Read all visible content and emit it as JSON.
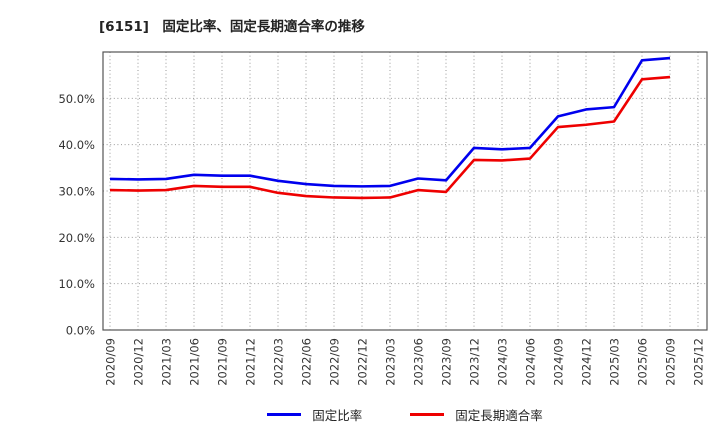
{
  "title": "[6151]　固定比率、固定長期適合率の推移",
  "chart_data": {
    "type": "line",
    "title": "[6151]　固定比率、固定長期適合率の推移",
    "categories": [
      "2020/09",
      "2020/12",
      "2021/03",
      "2021/06",
      "2021/09",
      "2021/12",
      "2022/03",
      "2022/06",
      "2022/09",
      "2022/12",
      "2023/03",
      "2023/06",
      "2023/09",
      "2023/12",
      "2024/03",
      "2024/06",
      "2024/09",
      "2024/12",
      "2025/03",
      "2025/06",
      "2025/09",
      "2025/12"
    ],
    "series": [
      {
        "name": "固定比率",
        "color": "#0000ee",
        "values": [
          32.6,
          32.5,
          32.6,
          33.5,
          33.3,
          33.3,
          32.2,
          31.5,
          31.1,
          31.0,
          31.1,
          32.7,
          32.3,
          39.3,
          39.0,
          39.3,
          46.1,
          47.6,
          48.1,
          58.2,
          58.7,
          null
        ]
      },
      {
        "name": "固定長期適合率",
        "color": "#ee0000",
        "values": [
          30.2,
          30.1,
          30.2,
          31.1,
          30.9,
          30.9,
          29.6,
          28.9,
          28.6,
          28.5,
          28.6,
          30.2,
          29.8,
          36.7,
          36.6,
          37.0,
          43.8,
          44.3,
          45.0,
          54.1,
          54.6,
          null
        ]
      }
    ],
    "xlabel": "",
    "ylabel": "",
    "ylim": [
      0,
      60
    ],
    "yticks": [
      "0.0%",
      "10.0%",
      "20.0%",
      "30.0%",
      "40.0%",
      "50.0%"
    ],
    "grid": true,
    "legend_position": "bottom",
    "grid_color": "#999999",
    "frame_color": "#555555",
    "tick_label_color": "#333333"
  }
}
